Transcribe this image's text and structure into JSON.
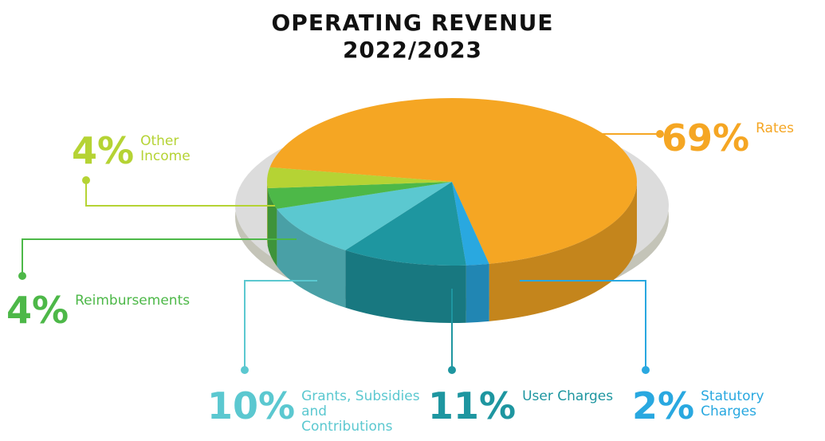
{
  "chart_data": {
    "type": "pie",
    "title": "OPERATING REVENUE",
    "subtitle": "2022/2023",
    "categories": [
      "Rates",
      "Statutory Charges",
      "User Charges",
      "Grants, Subsidies and Contributions",
      "Reimbursements",
      "Other Income"
    ],
    "values": [
      69,
      2,
      11,
      10,
      4,
      4
    ],
    "value_labels": [
      "69%",
      "2%",
      "11%",
      "10%",
      "4%",
      "4%"
    ],
    "colors": [
      "#f5a623",
      "#29a8e0",
      "#1e96a0",
      "#5bc8d0",
      "#4db848",
      "#b5d334"
    ]
  }
}
